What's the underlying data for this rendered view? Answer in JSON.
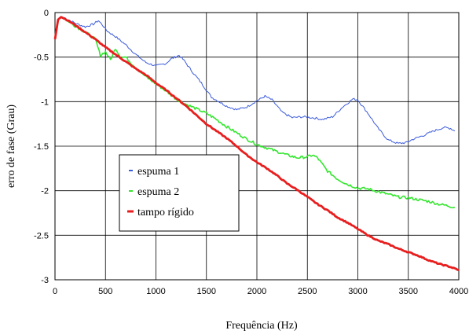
{
  "chart_data": {
    "type": "line",
    "title": "",
    "xlabel": "Frequência (Hz)",
    "ylabel": "erro de fase (Grau)",
    "xlim": [
      0,
      4000
    ],
    "ylim": [
      -3,
      0
    ],
    "x_ticks": [
      "0",
      "500",
      "1000",
      "1500",
      "2000",
      "2500",
      "3000",
      "3500",
      "4000"
    ],
    "y_ticks": [
      "0",
      "-0.5",
      "-1",
      "-1.5",
      "-2",
      "-2.5",
      "-3"
    ],
    "grid": true,
    "legend_position": "lower-left inside plot",
    "series": [
      {
        "name": "espuma 1",
        "color": "#3b5bdb",
        "points": [
          [
            0,
            -0.3
          ],
          [
            30,
            -0.08
          ],
          [
            60,
            -0.05
          ],
          [
            100,
            -0.06
          ],
          [
            200,
            -0.12
          ],
          [
            300,
            -0.16
          ],
          [
            380,
            -0.13
          ],
          [
            430,
            -0.09
          ],
          [
            470,
            -0.14
          ],
          [
            520,
            -0.21
          ],
          [
            600,
            -0.27
          ],
          [
            700,
            -0.36
          ],
          [
            800,
            -0.47
          ],
          [
            900,
            -0.56
          ],
          [
            1000,
            -0.6
          ],
          [
            1100,
            -0.57
          ],
          [
            1150,
            -0.52
          ],
          [
            1230,
            -0.48
          ],
          [
            1280,
            -0.54
          ],
          [
            1350,
            -0.65
          ],
          [
            1450,
            -0.79
          ],
          [
            1550,
            -0.95
          ],
          [
            1700,
            -1.05
          ],
          [
            1800,
            -1.09
          ],
          [
            1900,
            -1.06
          ],
          [
            2000,
            -0.99
          ],
          [
            2080,
            -0.94
          ],
          [
            2150,
            -0.98
          ],
          [
            2250,
            -1.12
          ],
          [
            2350,
            -1.18
          ],
          [
            2450,
            -1.17
          ],
          [
            2550,
            -1.18
          ],
          [
            2650,
            -1.2
          ],
          [
            2750,
            -1.17
          ],
          [
            2850,
            -1.06
          ],
          [
            2950,
            -0.97
          ],
          [
            3000,
            -0.98
          ],
          [
            3100,
            -1.13
          ],
          [
            3200,
            -1.3
          ],
          [
            3300,
            -1.43
          ],
          [
            3400,
            -1.47
          ],
          [
            3480,
            -1.46
          ],
          [
            3550,
            -1.42
          ],
          [
            3650,
            -1.38
          ],
          [
            3750,
            -1.33
          ],
          [
            3850,
            -1.29
          ],
          [
            3920,
            -1.3
          ],
          [
            3960,
            -1.33
          ]
        ]
      },
      {
        "name": "espuma 2",
        "color": "#33e62e",
        "points": [
          [
            0,
            -0.3
          ],
          [
            30,
            -0.08
          ],
          [
            60,
            -0.05
          ],
          [
            100,
            -0.07
          ],
          [
            200,
            -0.15
          ],
          [
            300,
            -0.22
          ],
          [
            400,
            -0.3
          ],
          [
            450,
            -0.48
          ],
          [
            500,
            -0.44
          ],
          [
            550,
            -0.53
          ],
          [
            600,
            -0.4
          ],
          [
            650,
            -0.5
          ],
          [
            700,
            -0.5
          ],
          [
            800,
            -0.62
          ],
          [
            900,
            -0.72
          ],
          [
            1000,
            -0.8
          ],
          [
            1100,
            -0.88
          ],
          [
            1200,
            -0.97
          ],
          [
            1300,
            -1.03
          ],
          [
            1400,
            -1.08
          ],
          [
            1500,
            -1.13
          ],
          [
            1600,
            -1.2
          ],
          [
            1700,
            -1.28
          ],
          [
            1800,
            -1.35
          ],
          [
            1900,
            -1.42
          ],
          [
            2000,
            -1.48
          ],
          [
            2100,
            -1.52
          ],
          [
            2200,
            -1.56
          ],
          [
            2300,
            -1.6
          ],
          [
            2400,
            -1.63
          ],
          [
            2500,
            -1.62
          ],
          [
            2550,
            -1.6
          ],
          [
            2600,
            -1.63
          ],
          [
            2700,
            -1.78
          ],
          [
            2800,
            -1.87
          ],
          [
            2900,
            -1.93
          ],
          [
            3000,
            -1.97
          ],
          [
            3100,
            -1.98
          ],
          [
            3200,
            -2.01
          ],
          [
            3300,
            -2.04
          ],
          [
            3400,
            -2.07
          ],
          [
            3500,
            -2.08
          ],
          [
            3600,
            -2.1
          ],
          [
            3700,
            -2.12
          ],
          [
            3800,
            -2.15
          ],
          [
            3900,
            -2.17
          ],
          [
            3960,
            -2.19
          ]
        ]
      },
      {
        "name": "tampo rígido",
        "color": "#e81e1e",
        "points": [
          [
            0,
            -0.3
          ],
          [
            30,
            -0.08
          ],
          [
            60,
            -0.05
          ],
          [
            100,
            -0.07
          ],
          [
            200,
            -0.14
          ],
          [
            300,
            -0.22
          ],
          [
            400,
            -0.3
          ],
          [
            500,
            -0.39
          ],
          [
            600,
            -0.47
          ],
          [
            700,
            -0.55
          ],
          [
            800,
            -0.63
          ],
          [
            900,
            -0.7
          ],
          [
            1000,
            -0.79
          ],
          [
            1100,
            -0.87
          ],
          [
            1200,
            -0.96
          ],
          [
            1300,
            -1.05
          ],
          [
            1400,
            -1.15
          ],
          [
            1500,
            -1.25
          ],
          [
            1600,
            -1.33
          ],
          [
            1700,
            -1.41
          ],
          [
            1800,
            -1.5
          ],
          [
            1900,
            -1.6
          ],
          [
            2000,
            -1.68
          ],
          [
            2100,
            -1.75
          ],
          [
            2200,
            -1.83
          ],
          [
            2300,
            -1.92
          ],
          [
            2400,
            -1.99
          ],
          [
            2500,
            -2.07
          ],
          [
            2600,
            -2.15
          ],
          [
            2700,
            -2.22
          ],
          [
            2800,
            -2.3
          ],
          [
            2900,
            -2.36
          ],
          [
            3000,
            -2.43
          ],
          [
            3100,
            -2.5
          ],
          [
            3200,
            -2.56
          ],
          [
            3300,
            -2.6
          ],
          [
            3400,
            -2.65
          ],
          [
            3500,
            -2.69
          ],
          [
            3600,
            -2.73
          ],
          [
            3700,
            -2.78
          ],
          [
            3800,
            -2.82
          ],
          [
            3900,
            -2.85
          ],
          [
            4000,
            -2.89
          ]
        ]
      }
    ]
  }
}
